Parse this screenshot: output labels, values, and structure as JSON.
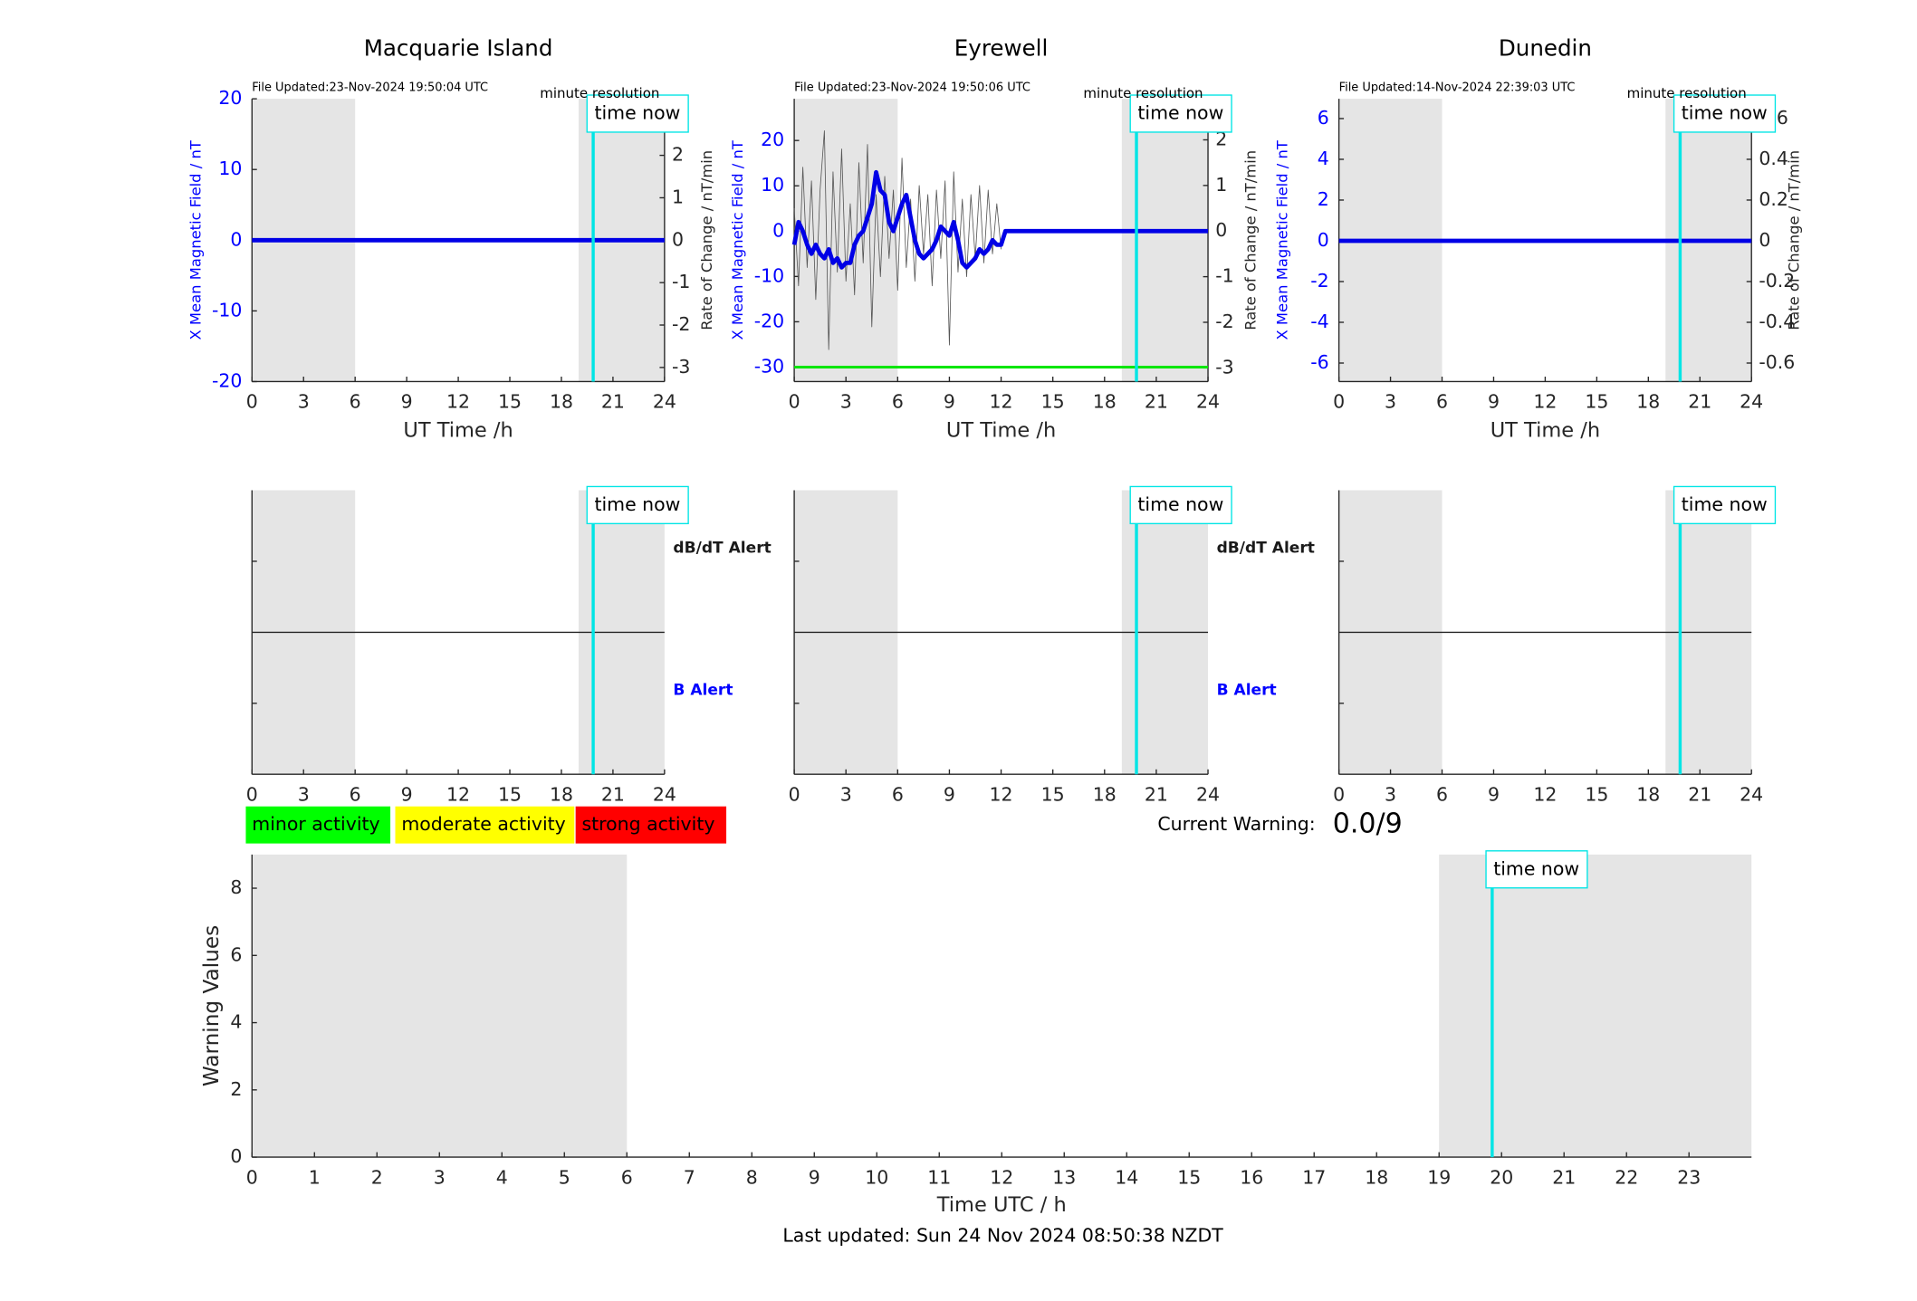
{
  "chart_data": [
    {
      "type": "line",
      "title": "Macquarie Island",
      "file_updated": "File Updated:23-Nov-2024 19:50:04 UTC",
      "resolution": "minute resolution",
      "ylabel": "X Mean Magnetic Field / nT",
      "y2label": "Rate of Change / nT/min",
      "xlabel": "UT Time /h",
      "xlim": [
        0,
        24
      ],
      "xticks": [
        0,
        3,
        6,
        9,
        12,
        15,
        18,
        21,
        24
      ],
      "ylim": [
        -20,
        20
      ],
      "yticks": [
        -20,
        -10,
        0,
        10,
        20
      ],
      "y2lim": [
        -3.333,
        3.333
      ],
      "y2ticks": [
        -3,
        -2,
        -1,
        0,
        1,
        2,
        3
      ],
      "shaded": [
        [
          0,
          6
        ],
        [
          19,
          24
        ]
      ],
      "now": {
        "label": "time now",
        "x": 19.85
      },
      "series": [
        {
          "color": "#0000e6",
          "x": [
            0,
            24
          ],
          "values": [
            0,
            0
          ]
        }
      ]
    },
    {
      "type": "line",
      "title": "Eyrewell",
      "file_updated": "File Updated:23-Nov-2024 19:50:06 UTC",
      "resolution": "minute resolution",
      "ylabel": "X Mean Magnetic Field / nT",
      "y2label": "Rate of Change / nT/min",
      "xlabel": "UT Time /h",
      "xlim": [
        0,
        24
      ],
      "xticks": [
        0,
        3,
        6,
        9,
        12,
        15,
        18,
        21,
        24
      ],
      "ylim": [
        -33.2,
        29.2
      ],
      "yticks": [
        -30,
        -20,
        -10,
        0,
        10,
        20
      ],
      "y2lim": [
        -3.3,
        2.9
      ],
      "y2ticks": [
        -3,
        -2,
        -1,
        0,
        1,
        2
      ],
      "shaded": [
        [
          0,
          6
        ],
        [
          19,
          24
        ]
      ],
      "now": {
        "label": "time now",
        "x": 19.85
      },
      "series": [
        {
          "color": "#555555",
          "axis": "y2",
          "x": [
            0,
            0.25,
            0.5,
            0.75,
            1,
            1.25,
            1.5,
            1.75,
            2,
            2.25,
            2.5,
            2.75,
            3,
            3.25,
            3.5,
            3.75,
            4,
            4.25,
            4.5,
            4.75,
            5,
            5.25,
            5.5,
            5.75,
            6,
            6.25,
            6.5,
            6.75,
            7,
            7.25,
            7.5,
            7.75,
            8,
            8.25,
            8.5,
            8.75,
            9,
            9.25,
            9.5,
            9.75,
            10,
            10.25,
            10.5,
            10.75,
            11,
            11.25,
            11.5,
            11.75,
            12
          ],
          "values": [
            0.5,
            -1.2,
            1.4,
            -0.8,
            1.1,
            -1.5,
            0.9,
            2.2,
            -2.6,
            1.3,
            -0.9,
            1.8,
            -1.1,
            0.6,
            -1.4,
            1.5,
            -0.7,
            1.9,
            -2.1,
            0.8,
            -1.0,
            1.2,
            -0.6,
            0.9,
            -1.3,
            1.6,
            -0.8,
            0.7,
            -1.1,
            1.0,
            -0.5,
            0.8,
            -1.2,
            0.9,
            -0.6,
            1.1,
            -2.5,
            1.3,
            -0.9,
            0.7,
            -1.0,
            0.8,
            -0.6,
            1.0,
            -0.7,
            0.9,
            -0.5,
            0.6,
            -0.4
          ]
        },
        {
          "color": "#00e600",
          "x": [
            0,
            24
          ],
          "values": [
            -30,
            -30
          ]
        },
        {
          "color": "#0000e6",
          "x": [
            0,
            0.25,
            0.5,
            0.75,
            1,
            1.25,
            1.5,
            1.75,
            2,
            2.25,
            2.5,
            2.75,
            3,
            3.25,
            3.5,
            3.75,
            4,
            4.25,
            4.5,
            4.75,
            5,
            5.25,
            5.5,
            5.75,
            6,
            6.25,
            6.5,
            6.75,
            7,
            7.25,
            7.5,
            7.75,
            8,
            8.25,
            8.5,
            8.75,
            9,
            9.25,
            9.5,
            9.75,
            10,
            10.25,
            10.5,
            10.75,
            11,
            11.25,
            11.5,
            11.75,
            12,
            12.25,
            24
          ],
          "values": [
            -3,
            2,
            0,
            -3,
            -5,
            -3,
            -5,
            -6,
            -4,
            -7,
            -6,
            -8,
            -7,
            -7,
            -3,
            -1,
            0,
            3,
            6,
            13,
            9,
            8,
            2,
            0,
            3,
            6,
            8,
            3,
            -2,
            -5,
            -6,
            -5,
            -4,
            -2,
            1,
            0,
            -1,
            2,
            -2,
            -7,
            -8,
            -7,
            -6,
            -4,
            -5,
            -4,
            -2,
            -3,
            -3,
            0,
            0
          ]
        }
      ]
    },
    {
      "type": "line",
      "title": "Dunedin",
      "file_updated": "File Updated:14-Nov-2024 22:39:03 UTC",
      "resolution": "minute resolution",
      "ylabel": "X Mean Magnetic Field / nT",
      "y2label": "Rate of Change / nT/min",
      "xlabel": "UT Time /h",
      "xlim": [
        0,
        24
      ],
      "xticks": [
        0,
        3,
        6,
        9,
        12,
        15,
        18,
        21,
        24
      ],
      "ylim": [
        -6.91,
        6.97
      ],
      "yticks": [
        -6,
        -4,
        -2,
        0,
        2,
        4,
        6
      ],
      "y2lim": [
        -0.691,
        0.697
      ],
      "y2ticks": [
        -0.6,
        -0.4,
        -0.2,
        0,
        0.2,
        0.4,
        0.6
      ],
      "shaded": [
        [
          0,
          6
        ],
        [
          19,
          24
        ]
      ],
      "now": {
        "label": "time now",
        "x": 19.85
      },
      "series": [
        {
          "color": "#0000e6",
          "x": [
            0,
            24
          ],
          "values": [
            0,
            0
          ]
        }
      ]
    },
    {
      "type": "alert",
      "xlim": [
        0,
        24
      ],
      "xticks": [
        0,
        3,
        6,
        9,
        12,
        15,
        18,
        21,
        24
      ],
      "shaded": [
        [
          0,
          6
        ],
        [
          19,
          24
        ]
      ],
      "now": {
        "label": "time now",
        "x": 19.85
      },
      "upper_label": "dB/dT Alert",
      "lower_label": "B Alert"
    },
    {
      "type": "alert",
      "xlim": [
        0,
        24
      ],
      "xticks": [
        0,
        3,
        6,
        9,
        12,
        15,
        18,
        21,
        24
      ],
      "shaded": [
        [
          0,
          6
        ],
        [
          19,
          24
        ]
      ],
      "now": {
        "label": "time now",
        "x": 19.85
      },
      "upper_label": "dB/dT Alert",
      "lower_label": "B Alert"
    },
    {
      "type": "alert",
      "xlim": [
        0,
        24
      ],
      "xticks": [
        0,
        3,
        6,
        9,
        12,
        15,
        18,
        21,
        24
      ],
      "shaded": [
        [
          0,
          6
        ],
        [
          19,
          24
        ]
      ],
      "now": {
        "label": "time now",
        "x": 19.85
      }
    },
    {
      "type": "line",
      "ylabel": "Warning Values",
      "xlabel": "Time UTC / h",
      "xlim": [
        0,
        24
      ],
      "xticks": [
        0,
        1,
        2,
        3,
        4,
        5,
        6,
        7,
        8,
        9,
        10,
        11,
        12,
        13,
        14,
        15,
        16,
        17,
        18,
        19,
        20,
        21,
        22,
        23
      ],
      "ylim": [
        0,
        9
      ],
      "yticks": [
        0,
        2,
        4,
        6,
        8
      ],
      "shaded": [
        [
          0,
          6
        ],
        [
          19,
          24
        ]
      ],
      "now": {
        "label": "time now",
        "x": 19.85
      },
      "levels": [
        {
          "label": "minor activity",
          "color": "#00ff00"
        },
        {
          "label": "moderate activity",
          "color": "#ffff00"
        },
        {
          "label": "strong activity",
          "color": "#ff0000"
        }
      ],
      "current_warning_label": "Current Warning:",
      "current_warning": "0.0/9"
    }
  ],
  "last_updated": "Last updated: Sun 24 Nov 2024 08:50:38 NZDT"
}
